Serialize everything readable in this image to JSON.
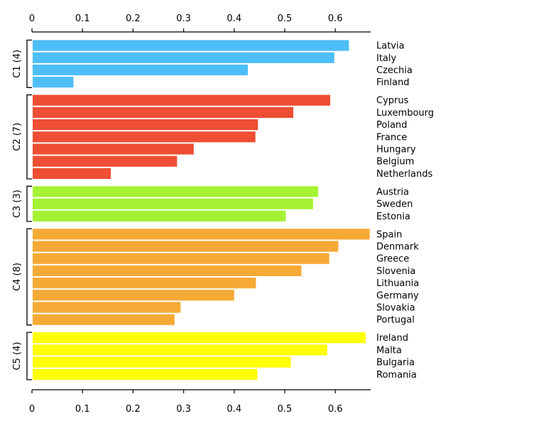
{
  "chart_data": {
    "type": "bar",
    "orientation": "horizontal",
    "title": "",
    "xlabel": "",
    "ylabel": "",
    "xlim": [
      0,
      0.67
    ],
    "x_ticks": [
      "0",
      "0.1",
      "0.2",
      "0.3",
      "0.4",
      "0.5",
      "0.6"
    ],
    "x_tick_values": [
      0,
      0.1,
      0.2,
      0.3,
      0.4,
      0.5,
      0.6
    ],
    "grid": false,
    "legend": "none",
    "clusters": [
      {
        "label": "C1 (4)",
        "color": "#4DBEF7",
        "items": [
          {
            "name": "Latvia",
            "value": 0.627
          },
          {
            "name": "Italy",
            "value": 0.598
          },
          {
            "name": "Czechia",
            "value": 0.427
          },
          {
            "name": "Finland",
            "value": 0.082
          }
        ]
      },
      {
        "label": "C2 (7)",
        "color": "#EE4E33",
        "items": [
          {
            "name": "Cyprus",
            "value": 0.59
          },
          {
            "name": "Luxembourg",
            "value": 0.517
          },
          {
            "name": "Poland",
            "value": 0.447
          },
          {
            "name": "France",
            "value": 0.442
          },
          {
            "name": "Hungary",
            "value": 0.32
          },
          {
            "name": "Belgium",
            "value": 0.287
          },
          {
            "name": "Netherlands",
            "value": 0.156
          }
        ]
      },
      {
        "label": "C3 (3)",
        "color": "#A4F233",
        "items": [
          {
            "name": "Austria",
            "value": 0.566
          },
          {
            "name": "Sweden",
            "value": 0.556
          },
          {
            "name": "Estonia",
            "value": 0.502
          }
        ]
      },
      {
        "label": "C4 (8)",
        "color": "#F6AA36",
        "items": [
          {
            "name": "Spain",
            "value": 0.668
          },
          {
            "name": "Denmark",
            "value": 0.606
          },
          {
            "name": "Greece",
            "value": 0.588
          },
          {
            "name": "Slovenia",
            "value": 0.533
          },
          {
            "name": "Lithuania",
            "value": 0.443
          },
          {
            "name": "Germany",
            "value": 0.4
          },
          {
            "name": "Slovakia",
            "value": 0.294
          },
          {
            "name": "Portugal",
            "value": 0.282
          }
        ]
      },
      {
        "label": "C5 (4)",
        "color": "#FFFF00",
        "items": [
          {
            "name": "Ireland",
            "value": 0.66
          },
          {
            "name": "Malta",
            "value": 0.584
          },
          {
            "name": "Bulgaria",
            "value": 0.512
          },
          {
            "name": "Romania",
            "value": 0.446
          }
        ]
      }
    ]
  }
}
